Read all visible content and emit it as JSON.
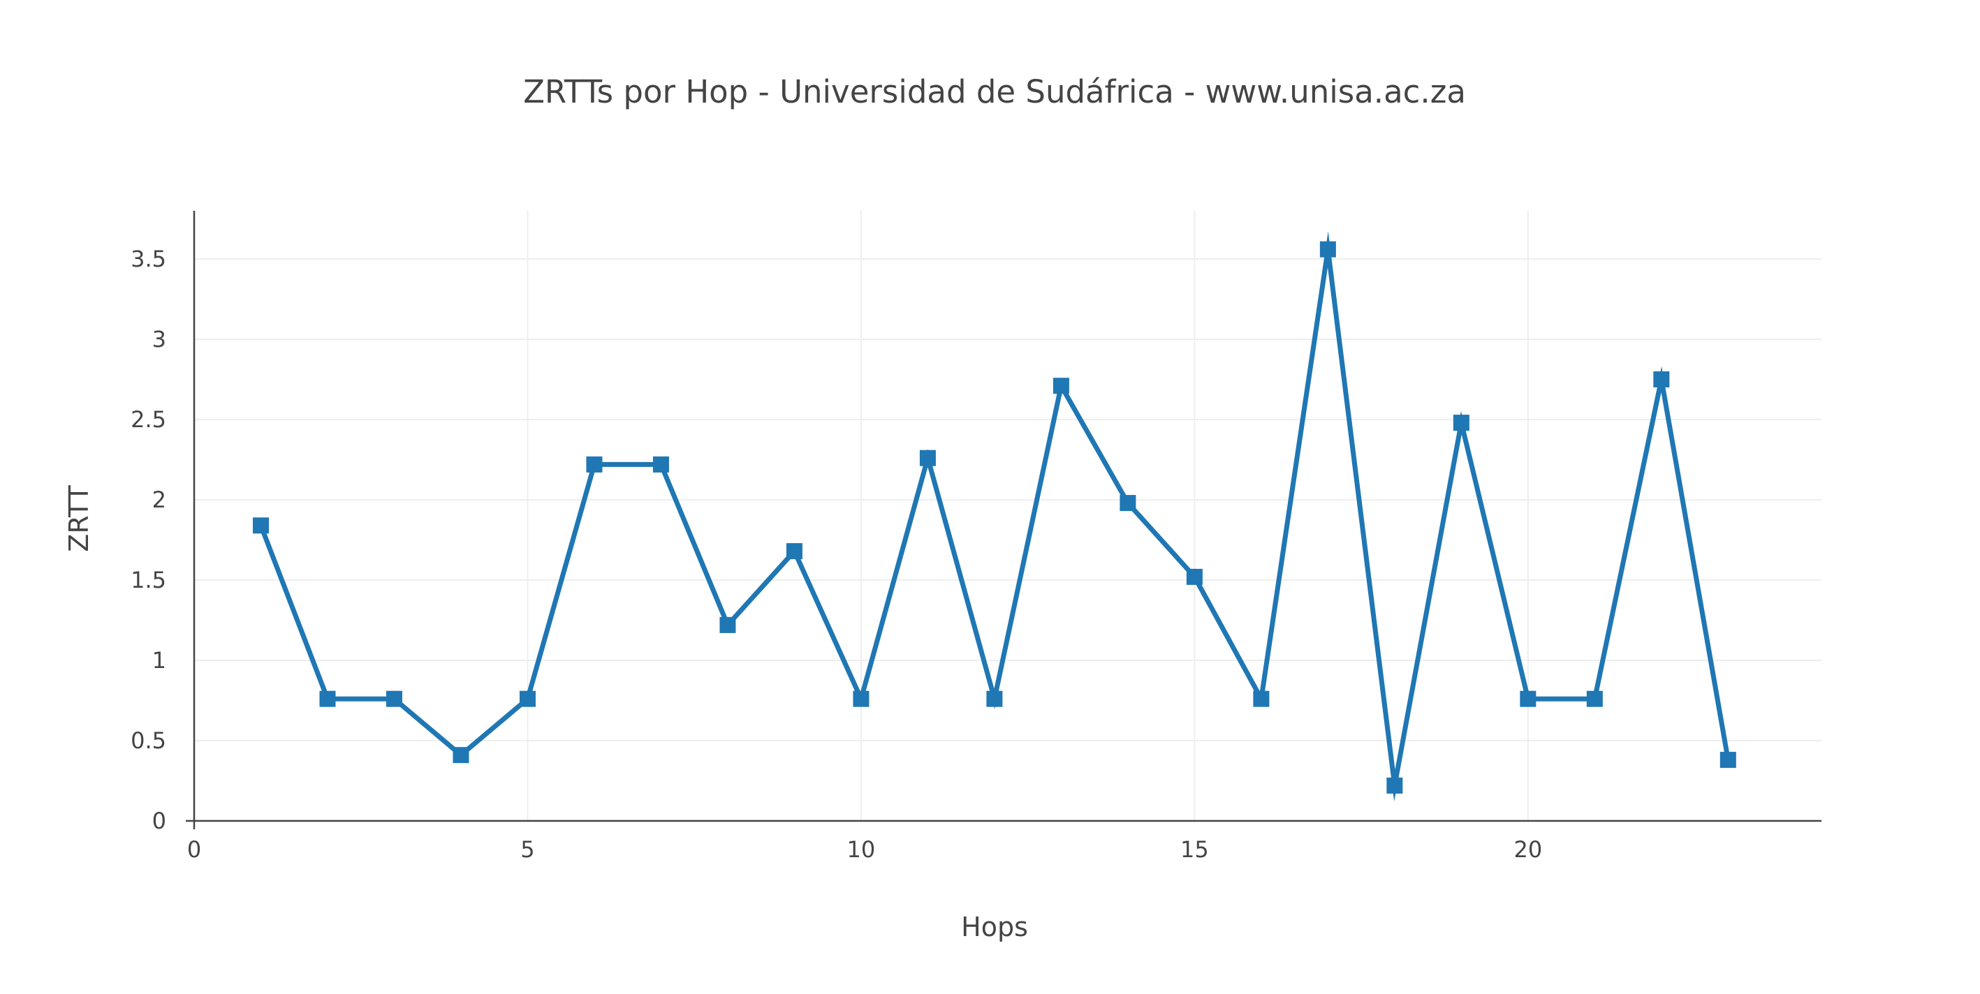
{
  "chart_data": {
    "type": "line",
    "title": "ZRTTs por Hop - Universidad de Sudáfrica - www.unisa.ac.za",
    "xlabel": "Hops",
    "ylabel": "ZRTT",
    "xlim": [
      0,
      24.4
    ],
    "ylim": [
      0,
      3.8
    ],
    "x_ticks": [
      0,
      5,
      10,
      15,
      20
    ],
    "y_ticks": [
      0,
      0.5,
      1,
      1.5,
      2,
      2.5,
      3,
      3.5
    ],
    "x_tick_labels": [
      "0",
      "5",
      "10",
      "15",
      "20"
    ],
    "y_tick_labels": [
      "0",
      "0.5",
      "1",
      "1.5",
      "2",
      "2.5",
      "3",
      "3.5"
    ],
    "grid": true,
    "legend": "none",
    "marker": "square",
    "color": "#1f77b4",
    "series": [
      {
        "x": [
          1,
          2,
          3,
          4,
          5,
          6,
          7,
          8,
          9,
          10,
          11,
          12,
          13,
          14,
          15,
          16,
          17,
          18,
          19,
          20,
          21,
          22,
          23
        ],
        "values": [
          1.84,
          0.76,
          0.76,
          0.41,
          0.76,
          2.22,
          2.22,
          1.22,
          1.68,
          0.76,
          2.26,
          0.76,
          2.71,
          1.98,
          1.52,
          0.76,
          3.56,
          0.22,
          2.48,
          0.76,
          0.76,
          2.75,
          0.38
        ]
      }
    ]
  }
}
